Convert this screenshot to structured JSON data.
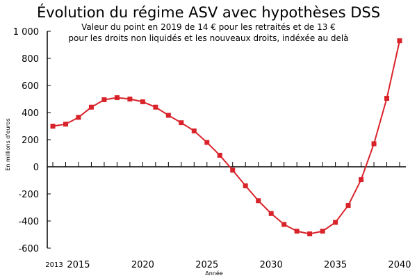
{
  "chart_data": {
    "type": "line",
    "title": "Évolution du régime ASV avec hypothèses DSS",
    "subtitle_lines": [
      "Valeur du point en 2019 de 14 € pour les retraités et de 13 €",
      "pour les droits non liquidés et les nouveaux droits, indéxée au delà"
    ],
    "xlabel": "Année",
    "ylabel": "En millions d'euros",
    "x": [
      2013,
      2014,
      2015,
      2016,
      2017,
      2018,
      2019,
      2020,
      2021,
      2022,
      2023,
      2024,
      2025,
      2026,
      2027,
      2028,
      2029,
      2030,
      2031,
      2032,
      2033,
      2034,
      2035,
      2036,
      2037,
      2038,
      2039,
      2040
    ],
    "series": [
      {
        "values": [
          300,
          315,
          365,
          440,
          495,
          510,
          500,
          480,
          440,
          380,
          325,
          265,
          180,
          85,
          -25,
          -140,
          -250,
          -345,
          -425,
          -475,
          -495,
          -475,
          -410,
          -285,
          -95,
          170,
          505,
          930
        ],
        "color": "#d9232a"
      }
    ],
    "xlim": [
      2013,
      2040
    ],
    "ylim": [
      -600,
      1000
    ],
    "x_ticks": [
      {
        "value": 2013,
        "label": "2013"
      },
      {
        "value": 2015,
        "label": "2015"
      },
      {
        "value": 2020,
        "label": "2020"
      },
      {
        "value": 2025,
        "label": "2025"
      },
      {
        "value": 2030,
        "label": "2030"
      },
      {
        "value": 2035,
        "label": "2035"
      },
      {
        "value": 2040,
        "label": "2040"
      }
    ],
    "y_ticks": [
      {
        "value": 1000,
        "label": "1 000"
      },
      {
        "value": 800,
        "label": "800"
      },
      {
        "value": 600,
        "label": "600"
      },
      {
        "value": 400,
        "label": "400"
      },
      {
        "value": 200,
        "label": "200"
      },
      {
        "value": 0,
        "label": "0"
      },
      {
        "value": -200,
        "label": "-200"
      },
      {
        "value": -400,
        "label": "-400"
      },
      {
        "value": -600,
        "label": "-600"
      }
    ],
    "grid": false,
    "legend": "none"
  }
}
